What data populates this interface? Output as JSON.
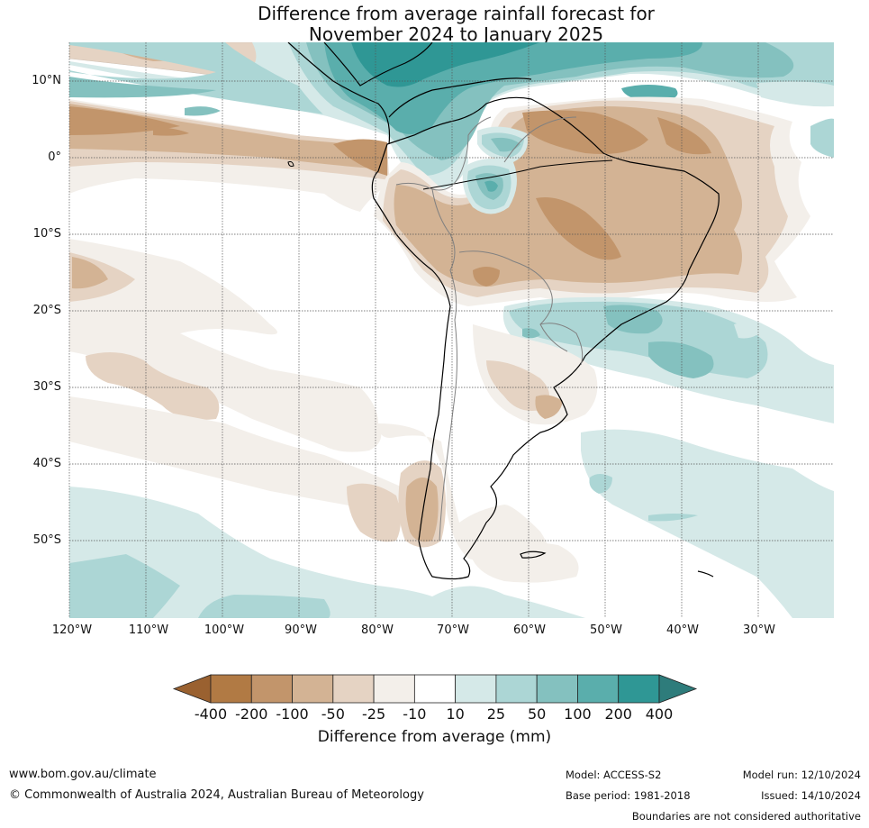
{
  "title": {
    "line1": "Difference from average rainfall forecast for",
    "line2": "November 2024 to January 2025"
  },
  "axes": {
    "lat_labels": [
      "10°N",
      "0°",
      "10°S",
      "20°S",
      "30°S",
      "40°S",
      "50°S"
    ],
    "lon_labels": [
      "120°W",
      "110°W",
      "100°W",
      "90°W",
      "80°W",
      "70°W",
      "60°W",
      "50°W",
      "40°W",
      "30°W"
    ]
  },
  "colorbar": {
    "title": "Difference from average (mm)",
    "ticks": [
      "-400",
      "-200",
      "-100",
      "-50",
      "-25",
      "-10",
      "10",
      "25",
      "50",
      "100",
      "200",
      "400"
    ],
    "colors": [
      "#a36b3a",
      "#b17a44",
      "#c2956b",
      "#d3b394",
      "#e5d3c3",
      "#f3efea",
      "#ffffff",
      "#d5e9e8",
      "#acd6d5",
      "#84c1bf",
      "#5aaeac",
      "#2f9795",
      "#2e7c7b"
    ],
    "extend_low_color": "#9a6130",
    "extend_high_color": "#2e7c7b"
  },
  "footer": {
    "url": "www.bom.gov.au/climate",
    "copyright": "© Commonwealth of Australia 2024, Australian Bureau of Meteorology",
    "model": "Model: ACCESS-S2",
    "model_run": "Model run: 12/10/2024",
    "base_period": "Base period: 1981-2018",
    "issued": "Issued: 14/10/2024",
    "disclaimer": "Boundaries are not considered authoritative"
  }
}
